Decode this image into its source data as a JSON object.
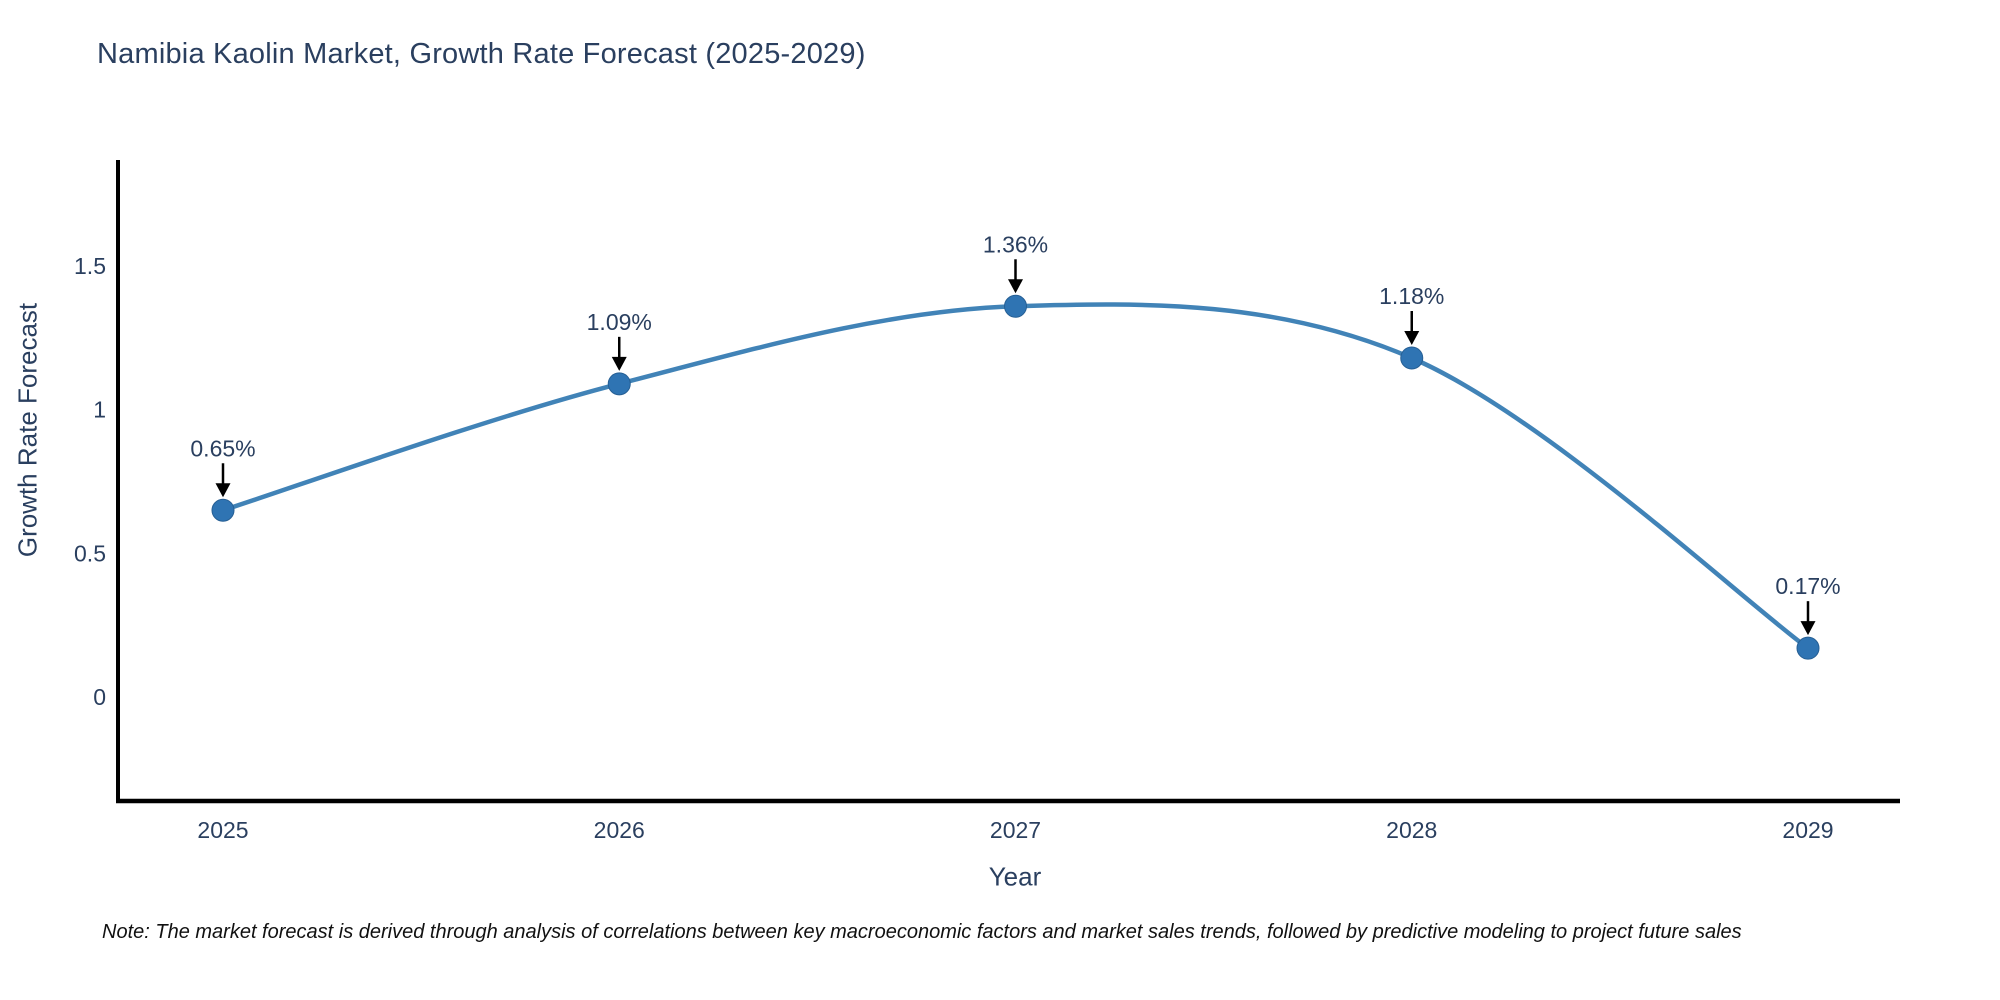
{
  "chart_data": {
    "type": "line",
    "line_style": "spline",
    "title": "Namibia Kaolin Market, Growth Rate Forecast (2025-2029)",
    "xlabel": "Year",
    "ylabel": "Growth Rate Forecast",
    "x": [
      2025,
      2026,
      2027,
      2028,
      2029
    ],
    "y": [
      0.65,
      1.09,
      1.36,
      1.18,
      0.17
    ],
    "point_labels": [
      "0.65%",
      "1.09%",
      "1.36%",
      "1.18%",
      "0.17%"
    ],
    "x_tick_labels": [
      "2025",
      "2026",
      "2027",
      "2028",
      "2029"
    ],
    "y_tick_values": [
      0,
      0.5,
      1,
      1.5
    ],
    "y_tick_labels": [
      "0",
      "0.5",
      "1",
      "1.5"
    ],
    "ylim": [
      -0.36,
      1.87
    ],
    "grid": false,
    "legend": "none",
    "colors": {
      "line": "#4183b7",
      "marker": "#2f74b3",
      "marker_edge": "#265f94",
      "arrow": "#000000",
      "axis": "#000000",
      "title": "#2a3f5f",
      "tick": "#2a3f5f",
      "annotation": "#2a3f5f",
      "note": "#111111",
      "background": "#ffffff"
    }
  },
  "note": {
    "text": "Note: The market forecast is derived through analysis of correlations between key macroeconomic factors and market sales trends, followed by predictive modeling to project future sales"
  }
}
